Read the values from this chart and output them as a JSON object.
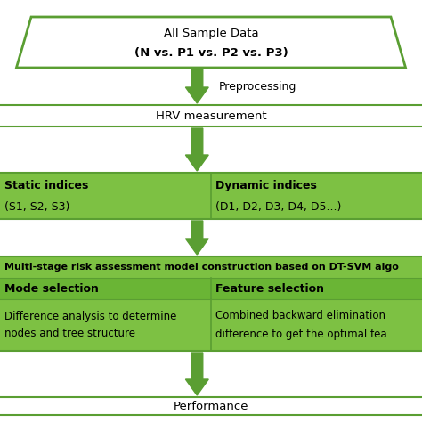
{
  "bg_color": "#ffffff",
  "arrow_color": "#5a9e32",
  "green_fill": "#7dc143",
  "dark_green": "#5a9e32",
  "light_green_fill": "#92c45a",
  "parallelogram": {
    "text_line1": "All Sample Data",
    "text_line2": "(N vs. P1 vs. P2 vs. P3)",
    "fill_color": "#ffffff",
    "edge_color": "#5a9e32"
  },
  "label_preprocessing": "Preprocessing",
  "hrv_text": "HRV measurement",
  "static_title": "Static indices",
  "static_body": "(S1, S2, S3)",
  "dynamic_title": "Dynamic indices",
  "dynamic_body": "(D1, D2, D3, D4, D5...)",
  "model_title": "Multi-stage risk assessment model construction based on DT-SVM algo",
  "mode_header": "Mode selection",
  "mode_body1": "Difference analysis to determine",
  "mode_body2": "nodes and tree structure",
  "feature_header": "Feature selection",
  "feature_body1": "Combined backward elimination",
  "feature_body2": "difference to get the optimal fea",
  "performance_text": "Performance"
}
